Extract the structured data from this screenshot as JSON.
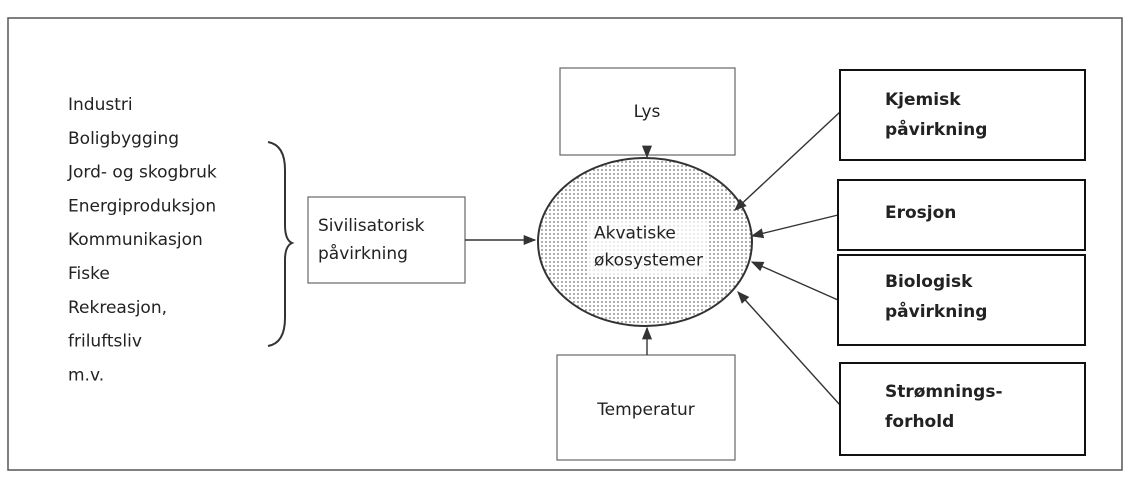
{
  "sources": [
    "Industri",
    "Boligbygging",
    "Jord- og skogbruk",
    "Energiproduksjon",
    "Kommunikasjon",
    "Fiske",
    "Rekreasjon,",
    "friluftsliv",
    "m.v."
  ],
  "civilization": [
    "Sivilisatorisk",
    "påvirkning"
  ],
  "center": [
    "Akvatiske",
    "økosystemer"
  ],
  "top": [
    "Lys"
  ],
  "bottom": [
    "Temperatur"
  ],
  "right": [
    [
      "Kjemisk",
      "påvirkning"
    ],
    [
      "Erosjon"
    ],
    [
      "Biologisk",
      "påvirkning"
    ],
    [
      "Strømnings-",
      "forhold"
    ]
  ]
}
